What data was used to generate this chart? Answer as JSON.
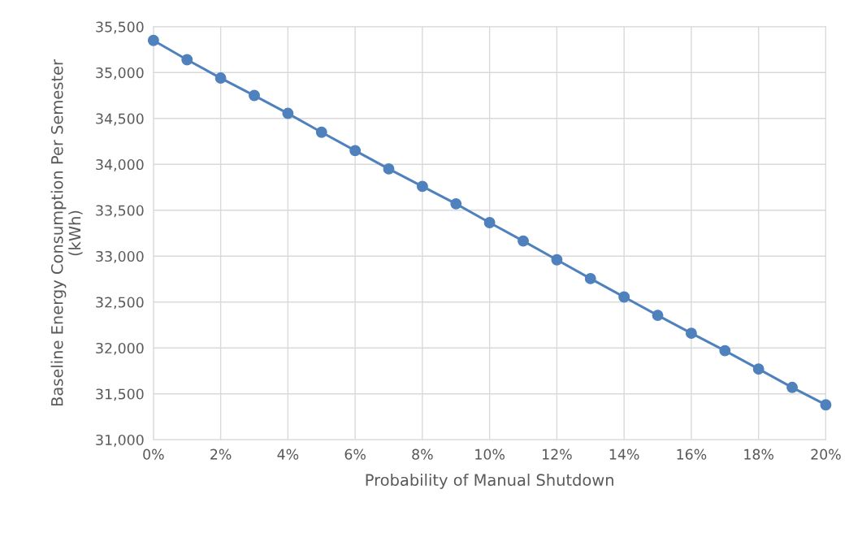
{
  "chart_data": {
    "type": "line",
    "xlabel": "Probability of Manual Shutdown",
    "ylabel": "Baseline Energy Consumption Per Semester\n(kWh)",
    "x": [
      0,
      1,
      2,
      3,
      4,
      5,
      6,
      7,
      8,
      9,
      10,
      11,
      12,
      13,
      14,
      15,
      16,
      17,
      18,
      19,
      20
    ],
    "series": [
      {
        "color": "#4f81bd",
        "values": [
          35350,
          35140,
          34940,
          34750,
          34555,
          34350,
          34150,
          33950,
          33760,
          33570,
          33365,
          33165,
          32960,
          32755,
          32555,
          32355,
          32160,
          31970,
          31770,
          31570,
          31380
        ]
      }
    ],
    "xlim": [
      0,
      20
    ],
    "xticks": [
      {
        "value": 0,
        "label": "0%"
      },
      {
        "value": 2,
        "label": "2%"
      },
      {
        "value": 4,
        "label": "4%"
      },
      {
        "value": 6,
        "label": "6%"
      },
      {
        "value": 8,
        "label": "8%"
      },
      {
        "value": 10,
        "label": "10%"
      },
      {
        "value": 12,
        "label": "12%"
      },
      {
        "value": 14,
        "label": "14%"
      },
      {
        "value": 16,
        "label": "16%"
      },
      {
        "value": 18,
        "label": "18%"
      },
      {
        "value": 20,
        "label": "20%"
      }
    ],
    "ylim": [
      31000,
      35500
    ],
    "yticks": [
      {
        "value": 31000,
        "label": "31,000"
      },
      {
        "value": 31500,
        "label": "31,500"
      },
      {
        "value": 32000,
        "label": "32,000"
      },
      {
        "value": 32500,
        "label": "32,500"
      },
      {
        "value": 33000,
        "label": "33,000"
      },
      {
        "value": 33500,
        "label": "33,500"
      },
      {
        "value": 34000,
        "label": "34,000"
      },
      {
        "value": 34500,
        "label": "34,500"
      },
      {
        "value": 35000,
        "label": "35,000"
      },
      {
        "value": 35500,
        "label": "35,500"
      }
    ],
    "grid": true,
    "marker": "circle",
    "line_style": "solid"
  }
}
